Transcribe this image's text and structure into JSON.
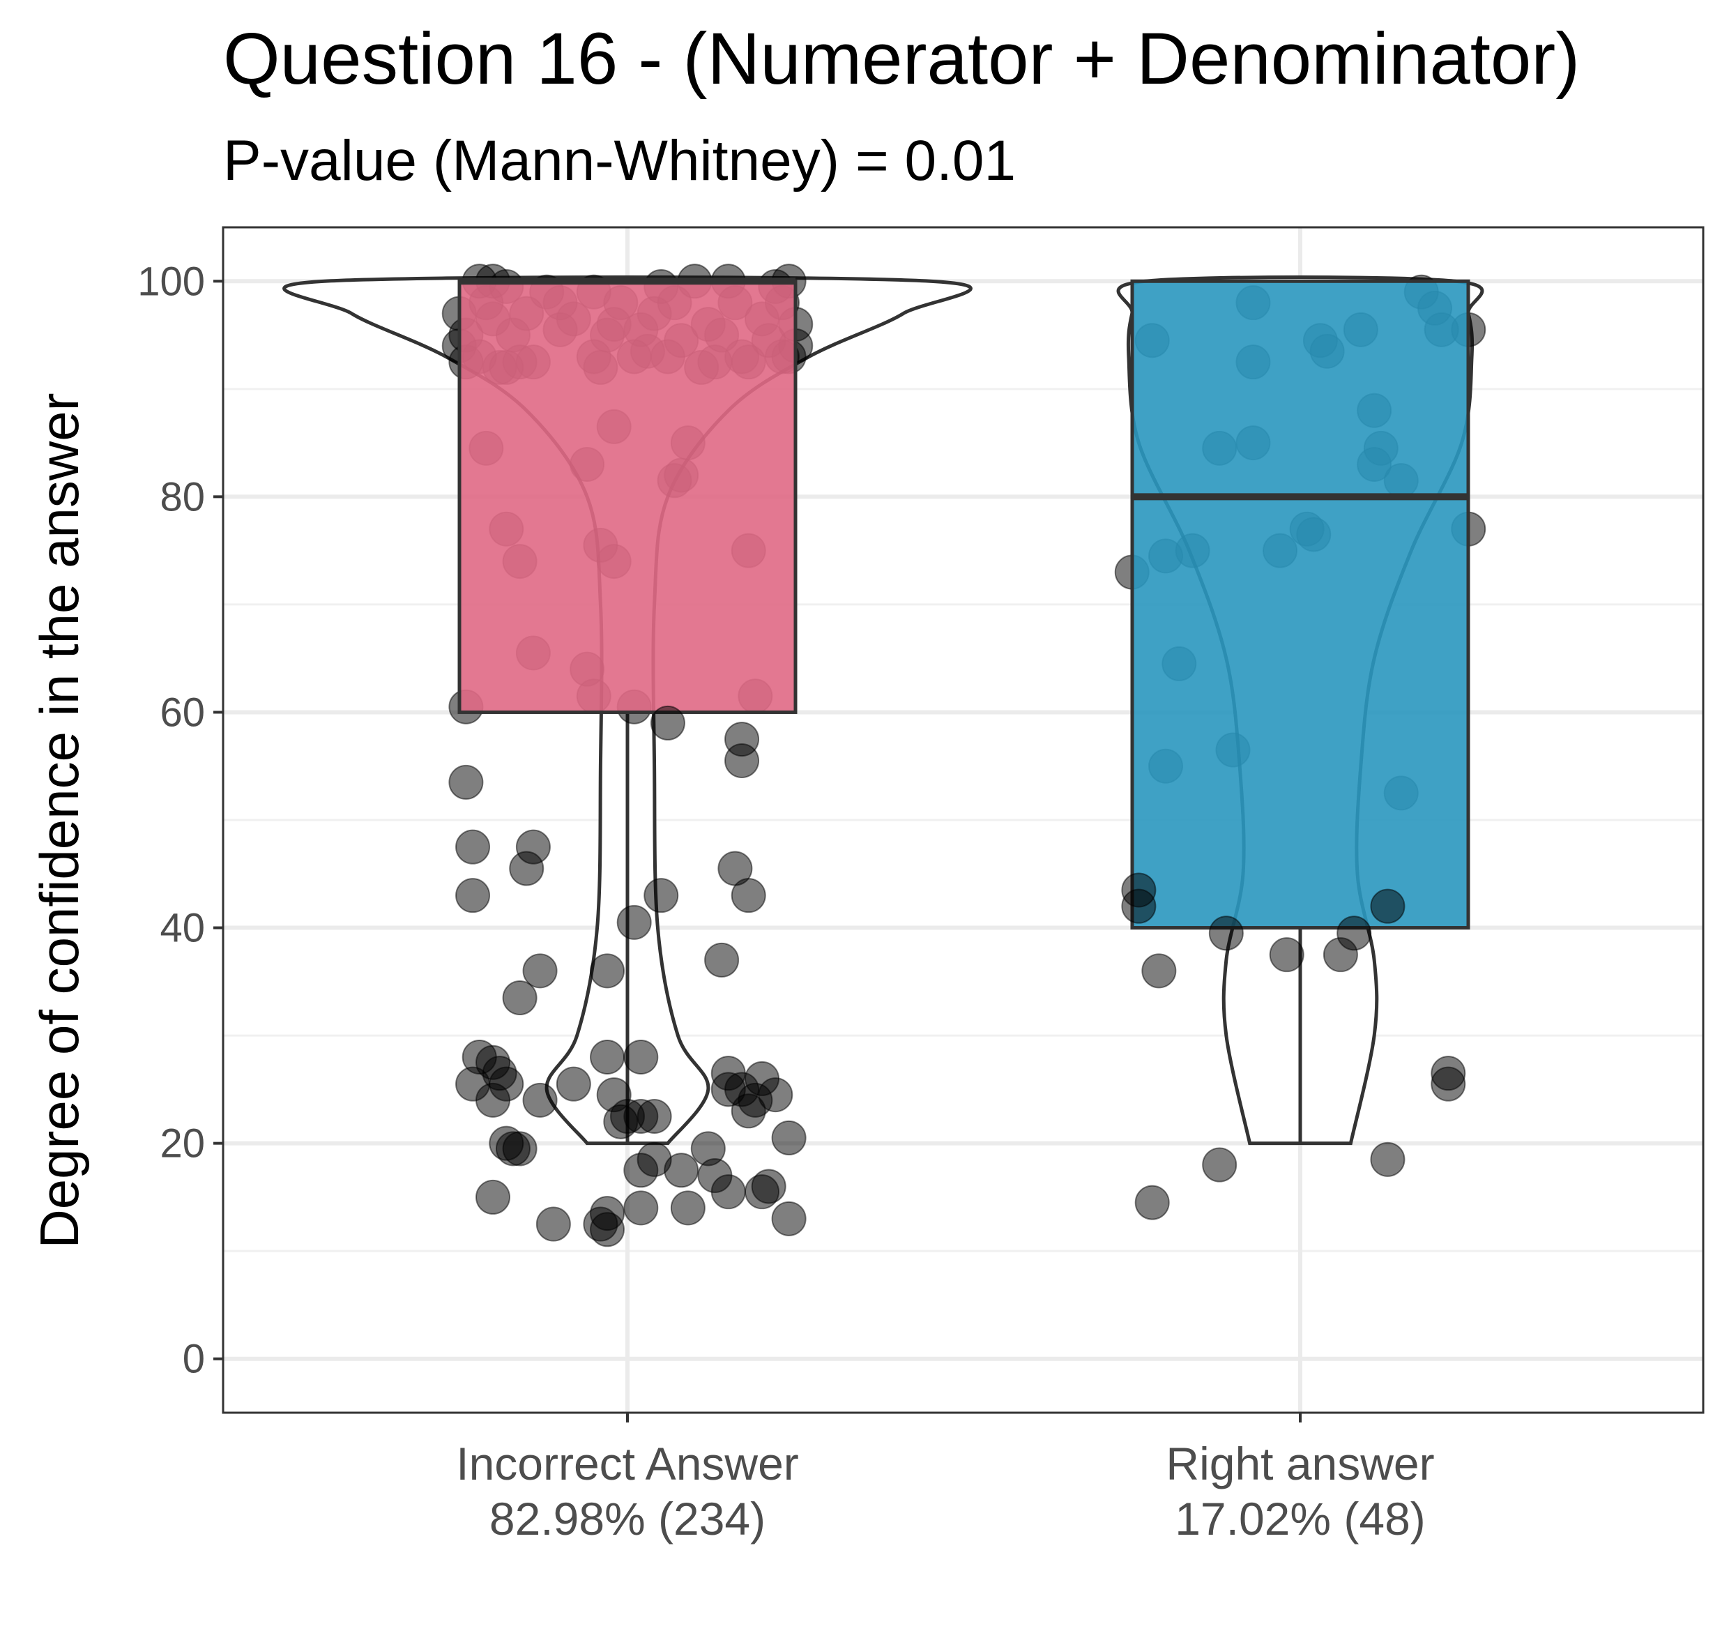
{
  "chart_data": {
    "type": "box",
    "title": "Question 16 - (Numerator + Denominator)",
    "subtitle": "P-value (Mann-Whitney) = 0.01",
    "xlabel": "",
    "ylabel": "Degree of confidence in the answer",
    "ylim": [
      -5,
      105
    ],
    "yticks": [
      0,
      20,
      40,
      60,
      80,
      100
    ],
    "grid": true,
    "categories": [
      {
        "label": "Incorrect Answer",
        "sublabel": "82.98% (234)"
      },
      {
        "label": "Right answer",
        "sublabel": "17.02% (48)"
      }
    ],
    "series": [
      {
        "color": "#e06985",
        "box": {
          "min": 20,
          "q1": 60,
          "median": 100,
          "q3": 100,
          "max": 100
        },
        "points": [
          [
            -0.22,
            100
          ],
          [
            -0.2,
            100
          ],
          [
            -0.18,
            99.5
          ],
          [
            -0.12,
            99
          ],
          [
            -0.05,
            99
          ],
          [
            0.05,
            99.5
          ],
          [
            0.1,
            100
          ],
          [
            0.15,
            100
          ],
          [
            0.22,
            99.5
          ],
          [
            0.24,
            100
          ],
          [
            -0.25,
            97
          ],
          [
            -0.2,
            96.5
          ],
          [
            -0.15,
            97
          ],
          [
            -0.08,
            96.5
          ],
          [
            -0.02,
            96
          ],
          [
            0.04,
            97
          ],
          [
            0.12,
            96
          ],
          [
            0.2,
            96.5
          ],
          [
            0.25,
            96
          ],
          [
            -0.24,
            95
          ],
          [
            -0.17,
            95
          ],
          [
            -0.1,
            95.5
          ],
          [
            -0.03,
            95
          ],
          [
            0.02,
            95.5
          ],
          [
            0.08,
            94.5
          ],
          [
            0.14,
            95
          ],
          [
            0.21,
            94.5
          ],
          [
            -0.25,
            94
          ],
          [
            -0.22,
            93
          ],
          [
            -0.18,
            92
          ],
          [
            -0.14,
            92.5
          ],
          [
            -0.05,
            93
          ],
          [
            0.01,
            93
          ],
          [
            0.06,
            93
          ],
          [
            0.13,
            92.5
          ],
          [
            0.17,
            93
          ],
          [
            0.23,
            93
          ],
          [
            0.25,
            94
          ],
          [
            -0.24,
            92.5
          ],
          [
            -0.19,
            92
          ],
          [
            -0.16,
            92.5
          ],
          [
            -0.04,
            92
          ],
          [
            0.03,
            93.5
          ],
          [
            0.11,
            92
          ],
          [
            0.18,
            92.5
          ],
          [
            0.24,
            93
          ],
          [
            -0.21,
            98
          ],
          [
            -0.1,
            98
          ],
          [
            -0.01,
            98
          ],
          [
            0.07,
            98
          ],
          [
            0.16,
            98
          ],
          [
            0.23,
            98
          ],
          [
            -0.02,
            86.5
          ],
          [
            0.09,
            85
          ],
          [
            -0.21,
            84.5
          ],
          [
            -0.06,
            83
          ],
          [
            0.07,
            81.5
          ],
          [
            0.08,
            82
          ],
          [
            -0.18,
            77
          ],
          [
            -0.04,
            75.5
          ],
          [
            0.18,
            75
          ],
          [
            -0.16,
            74
          ],
          [
            -0.02,
            74
          ],
          [
            -0.14,
            65.5
          ],
          [
            -0.06,
            64
          ],
          [
            -0.05,
            61.5
          ],
          [
            0.19,
            61.5
          ],
          [
            -0.24,
            60.5
          ],
          [
            0.01,
            60.5
          ]
        ]
      },
      {
        "color": "#2a97bf",
        "box": {
          "min": 20,
          "q1": 40,
          "median": 80,
          "q3": 100,
          "max": 100
        },
        "points": [
          [
            0.18,
            99
          ],
          [
            0.2,
            97.5
          ],
          [
            -0.07,
            98
          ],
          [
            0.25,
            95.5
          ],
          [
            0.21,
            95.5
          ],
          [
            0.09,
            95.5
          ],
          [
            -0.22,
            94.5
          ],
          [
            0.04,
            93.5
          ],
          [
            0.03,
            94.5
          ],
          [
            -0.07,
            92.5
          ],
          [
            0.11,
            88
          ],
          [
            0.12,
            84.5
          ],
          [
            -0.07,
            85
          ],
          [
            -0.12,
            84.5
          ],
          [
            0.11,
            83
          ],
          [
            0.15,
            81.5
          ],
          [
            0.25,
            77
          ],
          [
            0.01,
            77
          ],
          [
            -0.03,
            75
          ],
          [
            0.02,
            76.5
          ],
          [
            -0.16,
            75
          ],
          [
            -0.2,
            74.5
          ],
          [
            -0.25,
            73
          ],
          [
            -0.18,
            64.5
          ],
          [
            -0.2,
            55
          ],
          [
            -0.1,
            56.5
          ],
          [
            0.15,
            52.5
          ]
        ]
      }
    ],
    "outlier_points": [
      [
        -0.24,
        53.5
      ],
      [
        -0.23,
        47.5
      ],
      [
        -0.14,
        47.5
      ],
      [
        -0.15,
        45.5
      ],
      [
        -0.23,
        43
      ],
      [
        0.16,
        45.5
      ],
      [
        0.18,
        43
      ],
      [
        0.05,
        43
      ],
      [
        0.01,
        40.5
      ],
      [
        -0.13,
        36
      ],
      [
        -0.16,
        33.5
      ],
      [
        0.14,
        37
      ],
      [
        -0.03,
        36
      ],
      [
        0.06,
        59
      ],
      [
        0.17,
        57.5
      ],
      [
        0.17,
        55.5
      ],
      [
        -0.22,
        28
      ],
      [
        -0.23,
        25.5
      ],
      [
        -0.2,
        27.5
      ],
      [
        -0.19,
        26.5
      ],
      [
        -0.18,
        25.5
      ],
      [
        -0.2,
        24
      ],
      [
        -0.13,
        24
      ],
      [
        -0.08,
        25.5
      ],
      [
        -0.03,
        28
      ],
      [
        0.02,
        28
      ],
      [
        -0.02,
        24.5
      ],
      [
        0.0,
        22.5
      ],
      [
        0.02,
        22.5
      ],
      [
        0.04,
        22.5
      ],
      [
        -0.01,
        22
      ],
      [
        0.15,
        26.5
      ],
      [
        0.15,
        25
      ],
      [
        0.17,
        25
      ],
      [
        0.2,
        26
      ],
      [
        0.22,
        24.5
      ],
      [
        0.18,
        23
      ],
      [
        0.19,
        24
      ],
      [
        0.24,
        20.5
      ],
      [
        -0.18,
        20
      ],
      [
        -0.17,
        19.5
      ],
      [
        -0.16,
        19.5
      ],
      [
        0.12,
        19.5
      ],
      [
        0.02,
        17.5
      ],
      [
        0.04,
        18.5
      ],
      [
        0.08,
        17.5
      ],
      [
        0.13,
        17
      ],
      [
        0.15,
        15.5
      ],
      [
        0.21,
        16
      ],
      [
        0.2,
        15.5
      ],
      [
        -0.2,
        15
      ],
      [
        -0.11,
        12.5
      ],
      [
        -0.04,
        12.5
      ],
      [
        -0.03,
        12
      ],
      [
        -0.03,
        13.5
      ],
      [
        0.02,
        14
      ],
      [
        0.09,
        14
      ],
      [
        0.24,
        13
      ],
      [
        0.79,
        36
      ],
      [
        0.89,
        39.5
      ],
      [
        1.08,
        39.5
      ],
      [
        0.98,
        37.5
      ],
      [
        1.06,
        37.5
      ],
      [
        0.76,
        43.5
      ],
      [
        0.76,
        42
      ],
      [
        1.13,
        42
      ],
      [
        1.22,
        26.5
      ],
      [
        1.22,
        25.5
      ],
      [
        0.78,
        14.5
      ],
      [
        0.88,
        18
      ],
      [
        1.13,
        18.5
      ]
    ],
    "point_color": "#000000",
    "point_opacity": 0.5,
    "violins": [
      {
        "profile": [
          [
            20,
            0.06
          ],
          [
            25,
            0.12
          ],
          [
            30,
            0.075
          ],
          [
            40,
            0.045
          ],
          [
            55,
            0.04
          ],
          [
            70,
            0.04
          ],
          [
            80,
            0.06
          ],
          [
            88,
            0.15
          ],
          [
            93,
            0.27
          ],
          [
            97,
            0.41
          ],
          [
            100,
            0.45
          ]
        ]
      },
      {
        "profile": [
          [
            20,
            0.075
          ],
          [
            30,
            0.11
          ],
          [
            37,
            0.11
          ],
          [
            45,
            0.085
          ],
          [
            55,
            0.09
          ],
          [
            65,
            0.11
          ],
          [
            75,
            0.165
          ],
          [
            85,
            0.24
          ],
          [
            93,
            0.255
          ],
          [
            97,
            0.25
          ],
          [
            100,
            0.23
          ]
        ]
      }
    ]
  }
}
